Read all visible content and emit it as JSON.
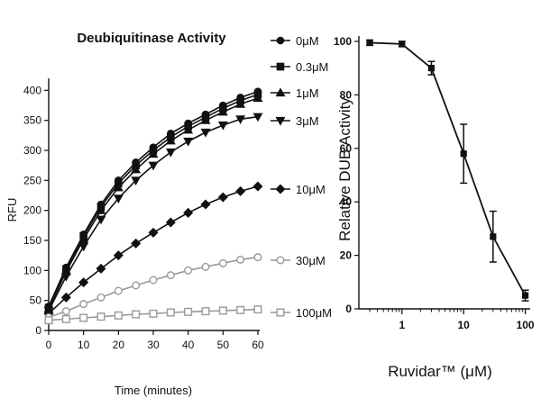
{
  "chart_data": [
    {
      "type": "line",
      "title": "Deubiquitinase Activity",
      "xlabel": "Time (minutes)",
      "ylabel": "RFU",
      "xlim": [
        0,
        60
      ],
      "ylim": [
        0,
        420
      ],
      "xticks": [
        0,
        10,
        20,
        30,
        40,
        50,
        60
      ],
      "yticks": [
        0,
        50,
        100,
        150,
        200,
        250,
        300,
        350,
        400
      ],
      "legend_position": "right",
      "grid": false,
      "x": [
        0,
        5,
        10,
        15,
        20,
        25,
        30,
        35,
        40,
        45,
        50,
        55,
        60
      ],
      "series": [
        {
          "name": "0μM",
          "marker": "circle-filled",
          "color": "#111111",
          "values": [
            40,
            105,
            160,
            210,
            250,
            280,
            305,
            328,
            345,
            360,
            375,
            388,
            398
          ]
        },
        {
          "name": "0.3μM",
          "marker": "square-filled",
          "color": "#111111",
          "values": [
            38,
            102,
            157,
            206,
            245,
            275,
            300,
            322,
            340,
            355,
            370,
            383,
            393
          ]
        },
        {
          "name": "1μM",
          "marker": "triangle-up-filled",
          "color": "#111111",
          "values": [
            36,
            98,
            152,
            200,
            238,
            268,
            294,
            316,
            334,
            350,
            364,
            377,
            387
          ]
        },
        {
          "name": "3μM",
          "marker": "triangle-down-filled",
          "color": "#111111",
          "values": [
            33,
            90,
            140,
            185,
            220,
            250,
            275,
            297,
            315,
            330,
            342,
            352,
            356
          ]
        },
        {
          "name": "10μM",
          "marker": "diamond-filled",
          "color": "#111111",
          "values": [
            28,
            55,
            80,
            103,
            125,
            145,
            163,
            180,
            196,
            210,
            222,
            232,
            240
          ]
        },
        {
          "name": "30μM",
          "marker": "circle-open",
          "color": "#999999",
          "values": [
            22,
            32,
            44,
            55,
            66,
            75,
            84,
            92,
            100,
            106,
            112,
            118,
            122
          ]
        },
        {
          "name": "100μM",
          "marker": "square-open",
          "color": "#999999",
          "values": [
            17,
            19,
            21,
            23,
            25,
            27,
            28,
            30,
            31,
            32,
            33,
            34,
            35
          ]
        }
      ]
    },
    {
      "type": "line",
      "title": "",
      "xlabel": "Ruvidar™ (μM)",
      "ylabel": "Relative DUB Activity",
      "xscale": "log",
      "xlim": [
        0.2,
        120
      ],
      "ylim": [
        0,
        102
      ],
      "xticks": [
        1,
        10,
        100
      ],
      "yticks": [
        0,
        20,
        40,
        60,
        80,
        100
      ],
      "grid": false,
      "x": [
        0.3,
        1,
        3,
        10,
        30,
        100
      ],
      "values": [
        99.5,
        99,
        90,
        58,
        27,
        5
      ],
      "error": [
        1,
        1,
        2.5,
        11,
        9.5,
        2
      ]
    }
  ]
}
